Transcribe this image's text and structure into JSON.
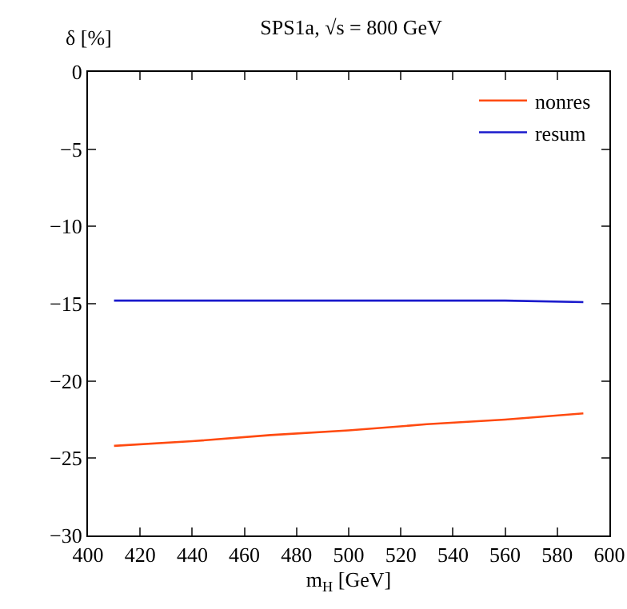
{
  "chart_data": {
    "type": "line",
    "title": "SPS1a, √s = 800 GeV",
    "xlabel": "m$_{H}$ [GeV]",
    "ylabel": "δ [%]",
    "x": [
      410,
      440,
      470,
      500,
      530,
      560,
      590
    ],
    "series": [
      {
        "name": "nonres",
        "color": "#ff4a10",
        "values": [
          -24.2,
          -23.9,
          -23.5,
          -23.2,
          -22.8,
          -22.5,
          -22.1
        ]
      },
      {
        "name": "resum",
        "color": "#1a1acc",
        "values": [
          -14.8,
          -14.8,
          -14.8,
          -14.8,
          -14.8,
          -14.8,
          -14.9
        ]
      }
    ],
    "xlim": [
      400,
      600
    ],
    "xticks": [
      400,
      420,
      440,
      460,
      480,
      500,
      520,
      540,
      560,
      580,
      600
    ],
    "ylim": [
      -30,
      0
    ],
    "yticks": [
      {
        "value": -30,
        "label": "−30"
      },
      {
        "value": -25,
        "label": "−25"
      },
      {
        "value": -20,
        "label": "−20"
      },
      {
        "value": -15,
        "label": "−15"
      },
      {
        "value": -10,
        "label": "−10"
      },
      {
        "value": -5,
        "label": "−5"
      },
      0
    ],
    "grid": false,
    "legend": "top right",
    "marker": "none",
    "line_style": "solid"
  }
}
